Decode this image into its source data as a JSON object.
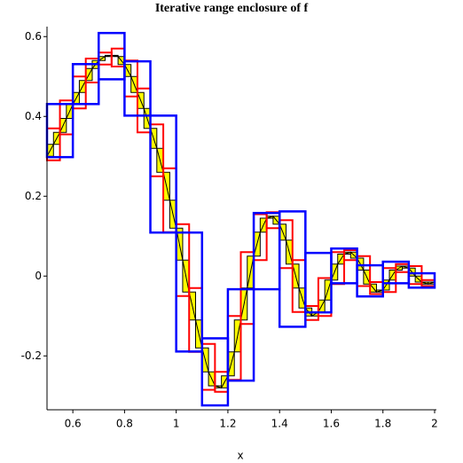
{
  "chart_data": {
    "type": "enclosure",
    "title": "Iterative range enclosure of f",
    "x_label": "x",
    "xlim": [
      0.5,
      2
    ],
    "ylim": [
      -0.335,
      0.625
    ],
    "xticks": [
      0.6,
      0.8,
      1,
      1.2,
      1.4,
      1.6,
      1.8,
      2
    ],
    "yticks": [
      -0.2,
      0,
      0.2,
      0.4,
      0.6
    ],
    "series": [
      {
        "color": "#000000",
        "fill": "#ffff00",
        "x": [
          0.5,
          0.525,
          0.55,
          0.575,
          0.6,
          0.625,
          0.65,
          0.675,
          0.7,
          0.725,
          0.75,
          0.775,
          0.8,
          0.825,
          0.85,
          0.875,
          0.9,
          0.925,
          0.95,
          0.975,
          1.0,
          1.025,
          1.05,
          1.075,
          1.1,
          1.125,
          1.15,
          1.175,
          1.2,
          1.225,
          1.25,
          1.275,
          1.3,
          1.325,
          1.35,
          1.375,
          1.4,
          1.425,
          1.45,
          1.475,
          1.5,
          1.525,
          1.55,
          1.575,
          1.6,
          1.625,
          1.65,
          1.675,
          1.7,
          1.725,
          1.75,
          1.775,
          1.8,
          1.825,
          1.85,
          1.875,
          1.9,
          1.925,
          1.95,
          1.975,
          2.0
        ],
        "values": [
          0.3,
          0.33,
          0.36,
          0.395,
          0.43,
          0.46,
          0.49,
          0.52,
          0.54,
          0.55,
          0.553,
          0.55,
          0.53,
          0.5,
          0.46,
          0.42,
          0.37,
          0.32,
          0.26,
          0.19,
          0.12,
          0.04,
          -0.04,
          -0.11,
          -0.18,
          -0.24,
          -0.275,
          -0.28,
          -0.25,
          -0.19,
          -0.11,
          -0.03,
          0.05,
          0.11,
          0.145,
          0.15,
          0.13,
          0.09,
          0.03,
          -0.03,
          -0.08,
          -0.1,
          -0.09,
          -0.06,
          -0.01,
          0.03,
          0.055,
          0.06,
          0.045,
          0.015,
          -0.02,
          -0.04,
          -0.035,
          -0.01,
          0.015,
          0.025,
          0.02,
          0.0,
          -0.015,
          -0.02,
          -0.015
        ]
      }
    ],
    "levels": [
      {
        "color": "#0000ff",
        "boxes": [
          [
            0.5,
            0.6,
            0.298,
            0.431
          ],
          [
            0.6,
            0.7,
            0.431,
            0.531
          ],
          [
            0.7,
            0.8,
            0.493,
            0.609
          ],
          [
            0.8,
            0.9,
            0.402,
            0.538
          ],
          [
            0.9,
            1.0,
            0.109,
            0.402
          ],
          [
            1.0,
            1.1,
            -0.189,
            0.109
          ],
          [
            1.1,
            1.2,
            -0.324,
            -0.156
          ],
          [
            1.2,
            1.3,
            -0.262,
            -0.033
          ],
          [
            1.3,
            1.4,
            -0.033,
            0.158
          ],
          [
            1.4,
            1.5,
            -0.127,
            0.162
          ],
          [
            1.5,
            1.6,
            -0.091,
            0.058
          ],
          [
            1.6,
            1.7,
            -0.018,
            0.069
          ],
          [
            1.7,
            1.8,
            -0.051,
            0.027
          ],
          [
            1.8,
            1.9,
            -0.018,
            0.036
          ],
          [
            1.9,
            2.0,
            -0.029,
            0.007
          ]
        ]
      },
      {
        "color": "#ff0000",
        "boxes": [
          [
            0.5,
            0.55,
            0.29,
            0.37
          ],
          [
            0.55,
            0.6,
            0.355,
            0.44
          ],
          [
            0.6,
            0.65,
            0.42,
            0.5
          ],
          [
            0.65,
            0.7,
            0.485,
            0.545
          ],
          [
            0.7,
            0.75,
            0.53,
            0.56
          ],
          [
            0.75,
            0.8,
            0.525,
            0.57
          ],
          [
            0.8,
            0.85,
            0.45,
            0.54
          ],
          [
            0.85,
            0.9,
            0.36,
            0.47
          ],
          [
            0.9,
            0.95,
            0.25,
            0.38
          ],
          [
            0.95,
            1.0,
            0.11,
            0.27
          ],
          [
            1.0,
            1.05,
            -0.05,
            0.13
          ],
          [
            1.05,
            1.1,
            -0.19,
            -0.03
          ],
          [
            1.1,
            1.15,
            -0.285,
            -0.17
          ],
          [
            1.15,
            1.2,
            -0.29,
            -0.24
          ],
          [
            1.2,
            1.25,
            -0.26,
            -0.1
          ],
          [
            1.25,
            1.3,
            -0.12,
            0.06
          ],
          [
            1.3,
            1.35,
            0.04,
            0.155
          ],
          [
            1.35,
            1.4,
            0.12,
            0.16
          ],
          [
            1.4,
            1.45,
            0.02,
            0.14
          ],
          [
            1.45,
            1.5,
            -0.09,
            0.04
          ],
          [
            1.5,
            1.55,
            -0.11,
            -0.075
          ],
          [
            1.55,
            1.6,
            -0.1,
            -0.005
          ],
          [
            1.6,
            1.65,
            -0.02,
            0.06
          ],
          [
            1.65,
            1.7,
            0.04,
            0.065
          ],
          [
            1.7,
            1.75,
            -0.025,
            0.05
          ],
          [
            1.75,
            1.8,
            -0.045,
            -0.015
          ],
          [
            1.8,
            1.85,
            -0.04,
            0.02
          ],
          [
            1.85,
            1.9,
            0.01,
            0.03
          ],
          [
            1.9,
            1.95,
            -0.02,
            0.025
          ],
          [
            1.95,
            2.0,
            -0.025,
            -0.01
          ]
        ]
      }
    ]
  }
}
